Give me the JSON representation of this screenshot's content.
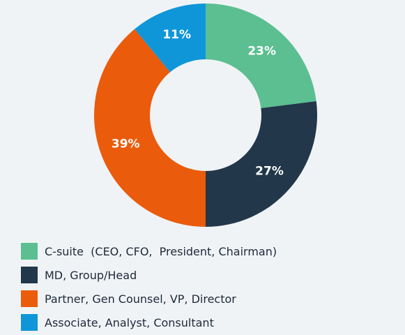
{
  "chart_data": {
    "type": "pie",
    "donut": true,
    "title": "",
    "categories": [
      "C-suite  (CEO, CFO,  President, Chairman)",
      "MD, Group/Head",
      "Partner, Gen Counsel, VP, Director",
      "Associate, Analyst, Consultant"
    ],
    "values": [
      23,
      27,
      39,
      11
    ],
    "labels": [
      "23%",
      "27%",
      "39%",
      "11%"
    ],
    "colors": [
      "#5bbf91",
      "#22374a",
      "#ea5b0c",
      "#0f96d9"
    ],
    "legend_position": "bottom-left"
  }
}
